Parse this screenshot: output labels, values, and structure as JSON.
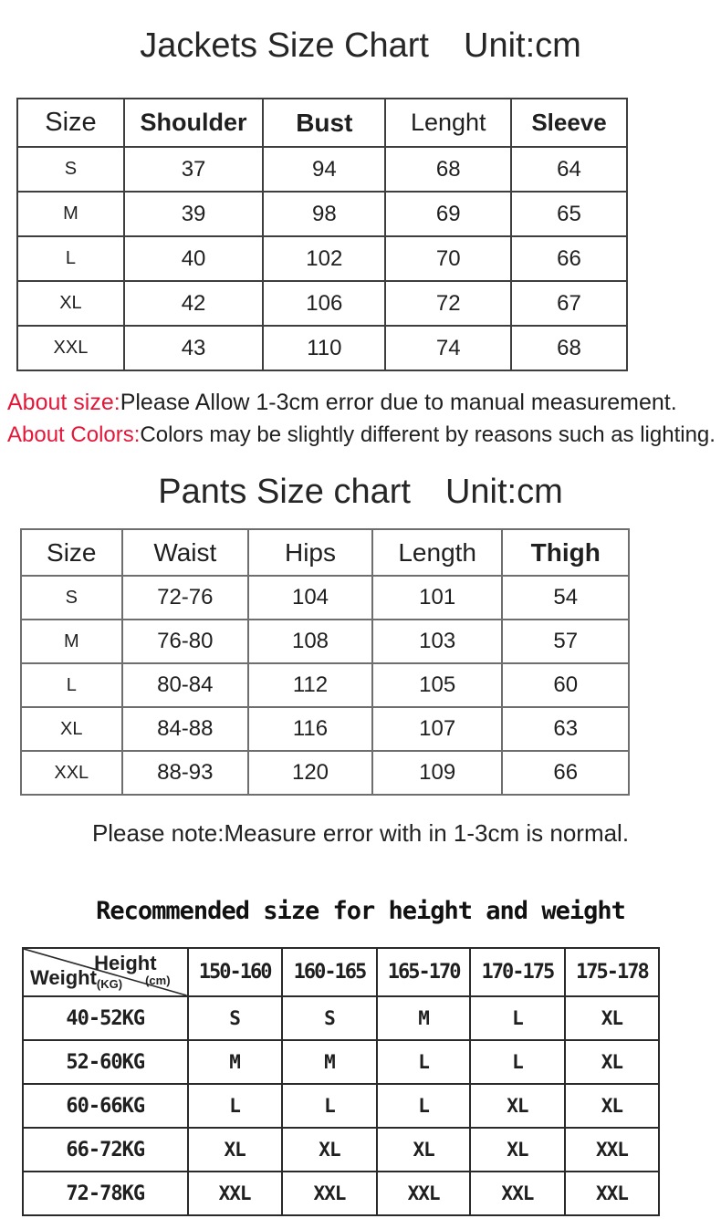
{
  "accent_color": "#e51739",
  "jackets": {
    "title": "Jackets Size Chart",
    "unit": "Unit:cm",
    "columns": [
      "Size",
      "Shoulder",
      "Bust",
      "Lenght",
      "Sleeve"
    ],
    "rows": [
      [
        "S",
        "37",
        "94",
        "68",
        "64"
      ],
      [
        "M",
        "39",
        "98",
        "69",
        "65"
      ],
      [
        "L",
        "40",
        "102",
        "70",
        "66"
      ],
      [
        "XL",
        "42",
        "106",
        "72",
        "67"
      ],
      [
        "XXL",
        "43",
        "110",
        "74",
        "68"
      ]
    ]
  },
  "notes": {
    "size_label": "About size:",
    "size_text": "Please Allow 1-3cm error due to manual measurement.",
    "colors_label": "About Colors:",
    "colors_text": "Colors may be slightly different by reasons such as lighting."
  },
  "pants": {
    "title": "Pants Size chart",
    "unit": "Unit:cm",
    "columns": [
      "Size",
      "Waist",
      "Hips",
      "Length",
      "Thigh"
    ],
    "rows": [
      [
        "S",
        "72-76",
        "104",
        "101",
        "54"
      ],
      [
        "M",
        "76-80",
        "108",
        "103",
        "57"
      ],
      [
        "L",
        "80-84",
        "112",
        "105",
        "60"
      ],
      [
        "XL",
        "84-88",
        "116",
        "107",
        "63"
      ],
      [
        "XXL",
        "88-93",
        "120",
        "109",
        "66"
      ]
    ]
  },
  "pants_note": "Please note:Measure error with in 1-3cm is normal.",
  "recommend": {
    "heading": "Recommended size for height and weight",
    "corner": {
      "top": "Height",
      "top_sub": "(cm)",
      "bottom": "Weight",
      "bottom_sub": "(KG)"
    },
    "columns": [
      "150-160",
      "160-165",
      "165-170",
      "170-175",
      "175-178"
    ],
    "rows": [
      {
        "label": "40-52KG",
        "values": [
          "S",
          "S",
          "M",
          "L",
          "XL"
        ]
      },
      {
        "label": "52-60KG",
        "values": [
          "M",
          "M",
          "L",
          "L",
          "XL"
        ]
      },
      {
        "label": "60-66KG",
        "values": [
          "L",
          "L",
          "L",
          "XL",
          "XL"
        ]
      },
      {
        "label": "66-72KG",
        "values": [
          "XL",
          "XL",
          "XL",
          "XL",
          "XXL"
        ]
      },
      {
        "label": "72-78KG",
        "values": [
          "XXL",
          "XXL",
          "XXL",
          "XXL",
          "XXL"
        ]
      }
    ]
  }
}
